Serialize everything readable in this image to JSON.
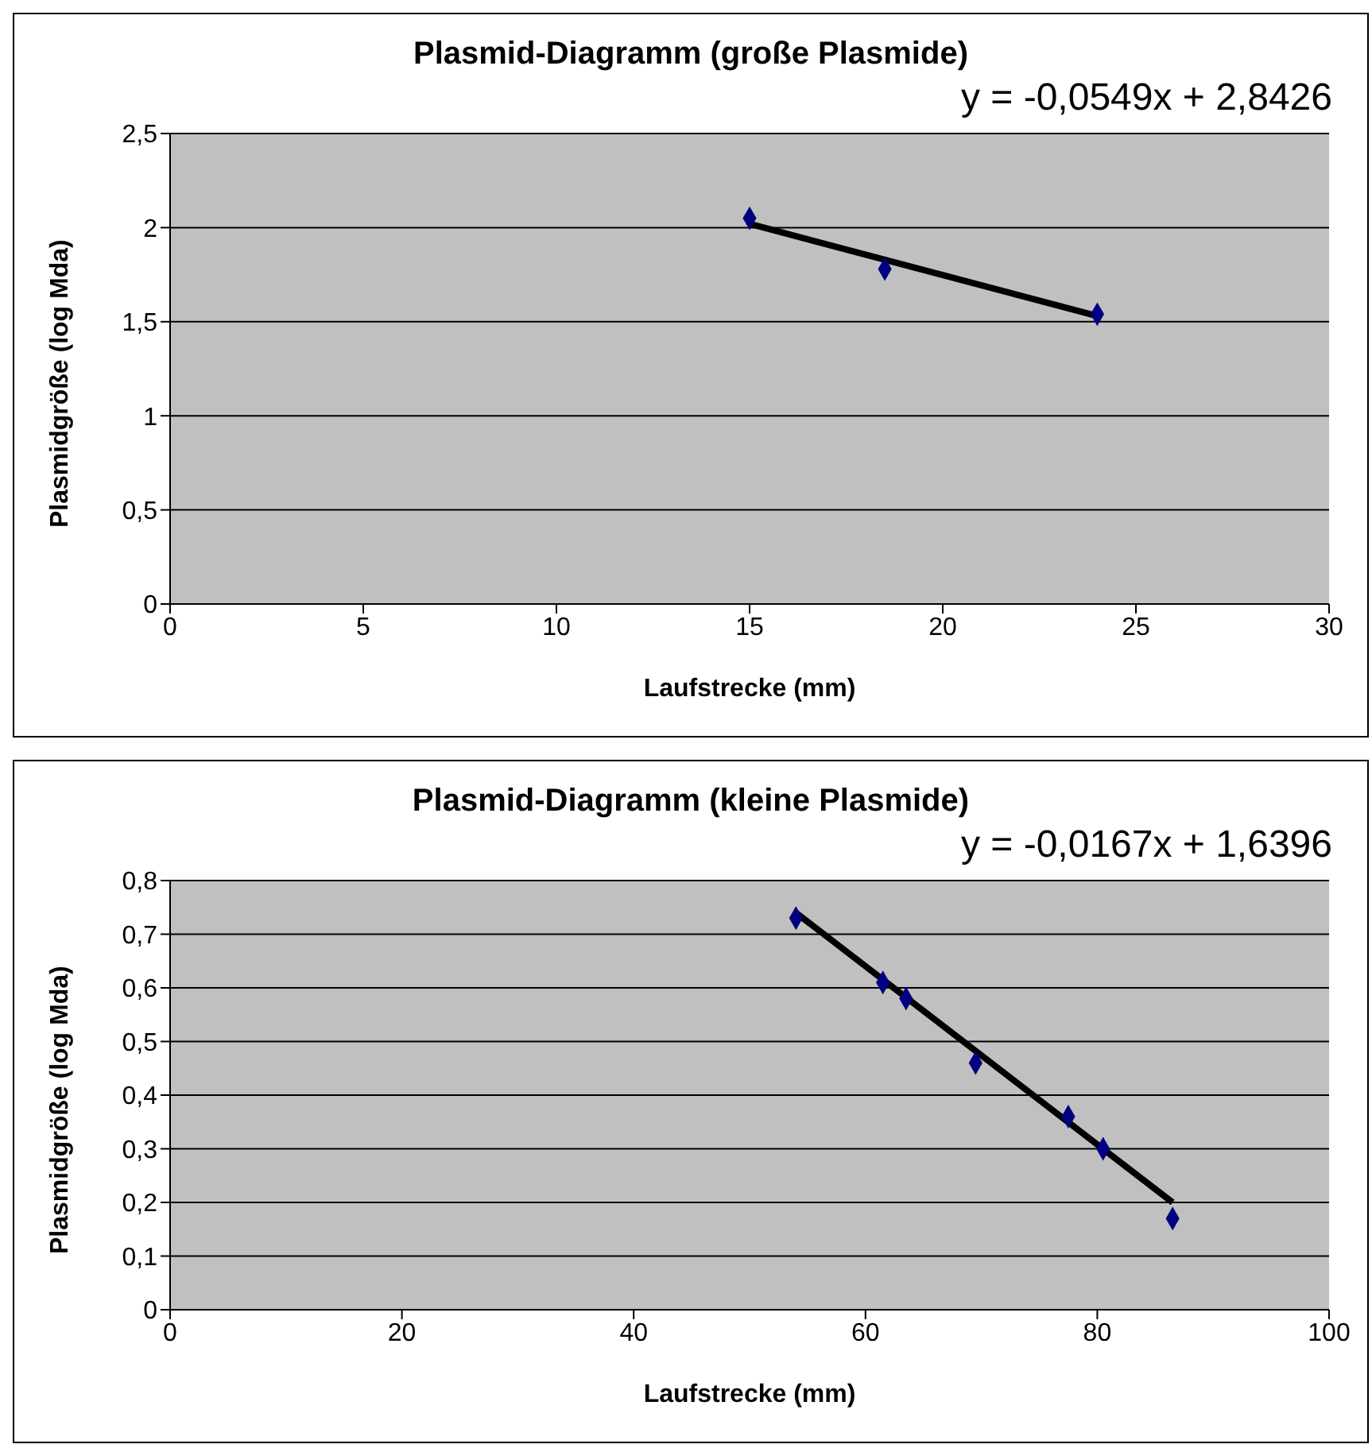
{
  "chart_data": [
    {
      "type": "scatter",
      "title": "Plasmid-Diagramm (große Plasmide)",
      "xlabel": "Laufstrecke (mm)",
      "ylabel": "Plasmidgröße (log Mda)",
      "annotations": [
        "y = -0,0549x + 2,8426"
      ],
      "xlim": [
        0,
        30
      ],
      "xticks": [
        0,
        5,
        10,
        15,
        20,
        25,
        30
      ],
      "ylim": [
        0,
        2.5
      ],
      "yticks": [
        {
          "value": 0,
          "label": "0"
        },
        {
          "value": 0.5,
          "label": "0,5"
        },
        {
          "value": 1,
          "label": "1"
        },
        {
          "value": 1.5,
          "label": "1,5"
        },
        {
          "value": 2,
          "label": "2"
        },
        {
          "value": 2.5,
          "label": "2,5"
        }
      ],
      "grid": "y",
      "legend": false,
      "marker": "diamond",
      "series": [
        {
          "color": "#000080",
          "x": [
            15,
            18.5,
            24
          ],
          "values": [
            2.05,
            1.78,
            1.54
          ]
        },
        {
          "type": "line",
          "color": "#000000",
          "marker": "none",
          "x": [
            15,
            24
          ],
          "values": [
            2.02,
            1.53
          ]
        }
      ]
    },
    {
      "type": "scatter",
      "title": "Plasmid-Diagramm (kleine Plasmide)",
      "xlabel": "Laufstrecke (mm)",
      "ylabel": "Plasmidgröße (log Mda)",
      "annotations": [
        "y = -0,0167x + 1,6396"
      ],
      "xlim": [
        0,
        100
      ],
      "xticks": [
        0,
        20,
        40,
        60,
        80,
        100
      ],
      "ylim": [
        0,
        0.8
      ],
      "yticks": [
        {
          "value": 0,
          "label": "0"
        },
        {
          "value": 0.1,
          "label": "0,1"
        },
        {
          "value": 0.2,
          "label": "0,2"
        },
        {
          "value": 0.3,
          "label": "0,3"
        },
        {
          "value": 0.4,
          "label": "0,4"
        },
        {
          "value": 0.5,
          "label": "0,5"
        },
        {
          "value": 0.6,
          "label": "0,6"
        },
        {
          "value": 0.7,
          "label": "0,7"
        },
        {
          "value": 0.8,
          "label": "0,8"
        }
      ],
      "grid": "y",
      "legend": false,
      "marker": "diamond",
      "series": [
        {
          "color": "#000080",
          "x": [
            54,
            61.5,
            63.5,
            69.5,
            77.5,
            80.5,
            86.5
          ],
          "values": [
            0.73,
            0.61,
            0.58,
            0.46,
            0.36,
            0.3,
            0.17
          ]
        },
        {
          "type": "line",
          "color": "#000000",
          "marker": "none",
          "x": [
            54,
            86.5
          ],
          "values": [
            0.74,
            0.2
          ]
        }
      ]
    }
  ]
}
